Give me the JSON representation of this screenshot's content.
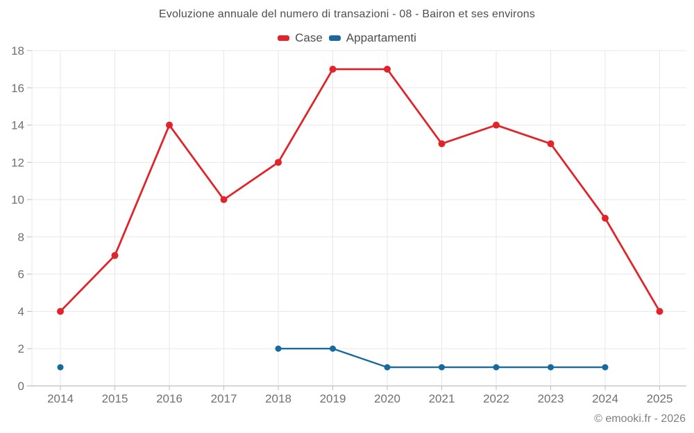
{
  "chart_data": {
    "type": "line",
    "title": "Evoluzione annuale del numero di transazioni - 08 - Bairon et ses environs",
    "footer": "© emooki.fr - 2026",
    "categories": [
      "2014",
      "2015",
      "2016",
      "2017",
      "2018",
      "2019",
      "2020",
      "2021",
      "2022",
      "2023",
      "2024",
      "2025"
    ],
    "series": [
      {
        "name": "Case",
        "color": "#e1242a",
        "values": [
          4,
          7,
          14,
          10,
          12,
          17,
          17,
          13,
          14,
          13,
          9,
          4
        ]
      },
      {
        "name": "Appartamenti",
        "color": "#17699e",
        "values": [
          1,
          null,
          null,
          null,
          2,
          2,
          1,
          1,
          1,
          1,
          1,
          null
        ]
      }
    ],
    "ylim": [
      0,
      18
    ],
    "ytick_step": 2,
    "grid": true,
    "legend_position": "top",
    "colors": {
      "grid": "#e7e7e7",
      "axis": "#bdbdbd",
      "tick_label": "#707070",
      "title": "#4d4d4d",
      "footer": "#808080"
    }
  }
}
